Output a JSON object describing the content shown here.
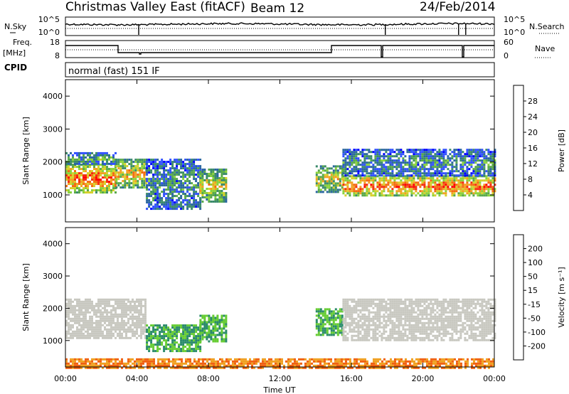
{
  "header": {
    "title": "Christmas Valley East (fitACF)",
    "beam": "Beam 12",
    "date": "24/Feb/2014"
  },
  "status_panels": {
    "nsky_label": "N.Sky",
    "nsky_ticks": [
      "10^5",
      "10^0"
    ],
    "nsearch_label": "N.Search",
    "nsearch_ticks": [
      "10^5",
      "10^0"
    ],
    "freq_label": "Freq.",
    "freq_unit": "[MHz]",
    "freq_ticks": [
      "18",
      "8"
    ],
    "nave_label": "Nave",
    "nave_ticks": [
      "60",
      "0"
    ],
    "cpid_label": "CPID",
    "cpid_value": "normal (fast) 151 IF"
  },
  "chart_data": [
    {
      "type": "heatmap",
      "name": "power",
      "ylabel": "Slant Range [km]",
      "y_ticks": [
        "4000",
        "3000",
        "2000",
        "1000"
      ],
      "ylim": [
        180,
        4500
      ],
      "x_ticks": [
        "00:00",
        "04:00",
        "08:00",
        "12:00",
        "16:00",
        "20:00",
        "00:00"
      ],
      "colorbar": {
        "label": "Power [dB]",
        "ticks": [
          "28",
          "24",
          "20",
          "16",
          "12",
          "8",
          "4"
        ],
        "colors": [
          "#0000ff",
          "#3050ff",
          "#2a66a0",
          "#3a8a6a",
          "#57a84a",
          "#8ad23a",
          "#d6d02a",
          "#f2a020",
          "#f46a10",
          "#f42a10",
          "#ff0000"
        ]
      },
      "echo_regions": [
        {
          "t": [
            0.0,
            2.8
          ],
          "range": [
            1100,
            1950
          ],
          "value": 26
        },
        {
          "t": [
            0.0,
            2.8
          ],
          "range": [
            1950,
            2300
          ],
          "value": 12
        },
        {
          "t": [
            2.8,
            4.5
          ],
          "range": [
            1200,
            2100
          ],
          "value": 20
        },
        {
          "t": [
            4.5,
            7.5
          ],
          "range": [
            600,
            2100
          ],
          "value": 10
        },
        {
          "t": [
            7.5,
            9.0
          ],
          "range": [
            800,
            1800
          ],
          "value": 18
        },
        {
          "t": [
            14.0,
            15.5
          ],
          "range": [
            1100,
            1900
          ],
          "value": 18
        },
        {
          "t": [
            15.5,
            24.0
          ],
          "range": [
            1000,
            1600
          ],
          "value": 26
        },
        {
          "t": [
            15.5,
            24.0
          ],
          "range": [
            1600,
            2400
          ],
          "value": 10
        }
      ]
    },
    {
      "type": "heatmap",
      "name": "velocity",
      "ylabel": "Slant Range [km]",
      "y_ticks": [
        "4000",
        "3000",
        "2000",
        "1000"
      ],
      "ylim": [
        180,
        4500
      ],
      "x_ticks": [
        "00:00",
        "04:00",
        "08:00",
        "12:00",
        "16:00",
        "20:00",
        "00:00"
      ],
      "xlabel": "Time UT",
      "colorbar": {
        "label": "Velocity [m s⁻¹]",
        "ticks": [
          "200",
          "100",
          "50",
          "15",
          "-15",
          "-50",
          "-100",
          "-200"
        ],
        "colors": [
          "#1a2aa0",
          "#2a50c8",
          "#2a8a6a",
          "#66cc33",
          "#c8c8c0",
          "#f0a020",
          "#f06010",
          "#f02010",
          "#ff0000"
        ]
      },
      "echo_regions": [
        {
          "t": [
            0.0,
            4.5
          ],
          "range": [
            1100,
            2300
          ],
          "value": 0
        },
        {
          "t": [
            4.5,
            7.5
          ],
          "range": [
            700,
            1500
          ],
          "value": 50
        },
        {
          "t": [
            7.5,
            9.0
          ],
          "range": [
            1000,
            1800
          ],
          "value": 50
        },
        {
          "t": [
            14.0,
            15.5
          ],
          "range": [
            1200,
            2000
          ],
          "value": 50
        },
        {
          "t": [
            15.5,
            24.0
          ],
          "range": [
            1000,
            2300
          ],
          "value": 0
        },
        {
          "t": [
            0.0,
            24.0
          ],
          "range": [
            180,
            450
          ],
          "value": -50
        }
      ]
    }
  ]
}
